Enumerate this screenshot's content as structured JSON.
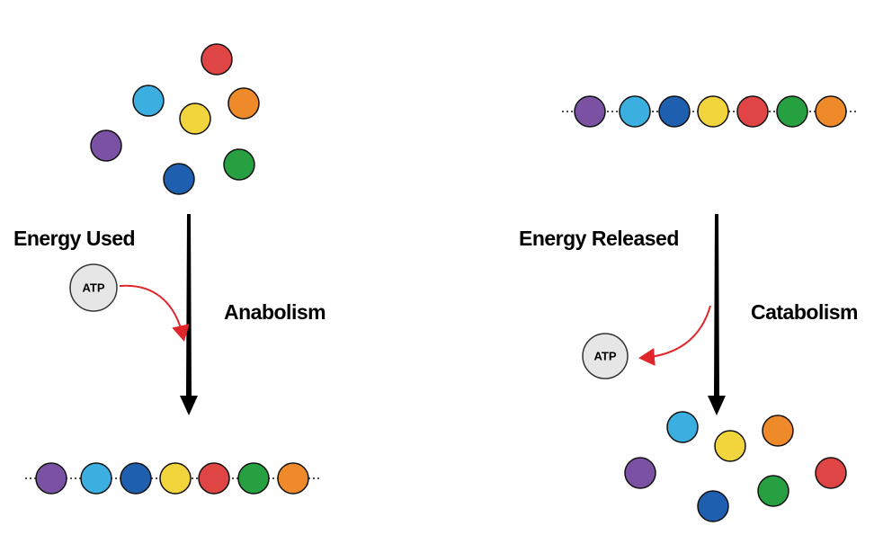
{
  "anabolism": {
    "energy_label": "Energy Used",
    "atp": "ATP",
    "process": "Anabolism"
  },
  "catabolism": {
    "energy_label": "Energy Released",
    "atp": "ATP",
    "process": "Catabolism"
  }
}
